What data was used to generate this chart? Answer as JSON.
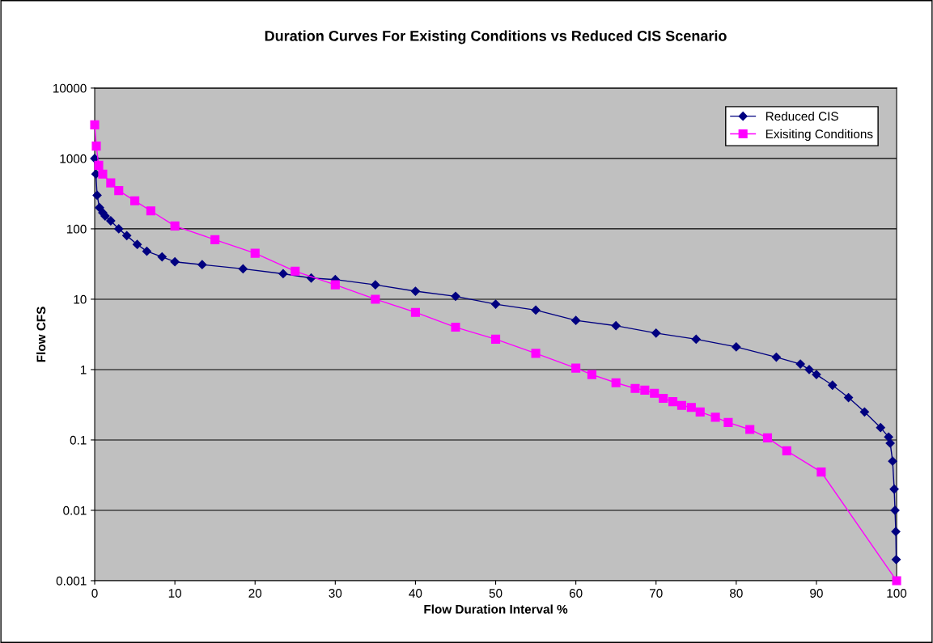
{
  "chart_data": {
    "type": "line",
    "title": "Duration Curves For Existing Conditions vs Reduced CIS Scenario",
    "xlabel": "Flow Duration Interval %",
    "ylabel": "Flow CFS",
    "log": "y",
    "grid": "y",
    "legend": "top right",
    "xlim": [
      0,
      100
    ],
    "xticks": [
      0,
      10,
      20,
      30,
      40,
      50,
      60,
      70,
      80,
      90,
      100
    ],
    "ylim": [
      0.001,
      10000
    ],
    "yticks": [
      0.001,
      0.01,
      0.1,
      1,
      10,
      100,
      1000,
      10000
    ],
    "series": [
      {
        "name": "Reduced CIS",
        "color": "#000080",
        "marker": "diamond",
        "x": [
          0,
          0.15,
          0.3,
          0.6,
          1,
          1.3,
          2,
          3,
          4,
          5.3,
          6.5,
          8.4,
          10,
          13.4,
          18.5,
          23.5,
          27,
          30,
          35,
          40,
          45,
          50,
          55,
          60,
          65,
          70,
          75,
          80,
          85,
          88,
          89.1,
          90,
          92,
          94,
          96,
          98,
          99,
          99.2,
          99.5,
          99.7,
          99.8,
          99.9,
          99.95
        ],
        "values": [
          1000,
          600,
          300,
          200,
          170,
          152,
          130,
          100,
          80,
          60,
          48,
          40,
          34,
          31,
          27,
          23,
          20,
          19,
          16,
          13,
          11,
          8.5,
          7,
          5,
          4.2,
          3.3,
          2.7,
          2.1,
          1.5,
          1.2,
          1,
          0.85,
          0.6,
          0.4,
          0.25,
          0.15,
          0.11,
          0.09,
          0.05,
          0.02,
          0.01,
          0.005,
          0.002
        ]
      },
      {
        "name": "Exisiting Conditions",
        "color": "#ff00ff",
        "marker": "square",
        "x": [
          0,
          0.2,
          0.5,
          1,
          2,
          3,
          5,
          7,
          10,
          15,
          20,
          25,
          30,
          35,
          40,
          45,
          50,
          55,
          60,
          62,
          65,
          67.4,
          68.6,
          69.8,
          70.9,
          72.1,
          73.2,
          74.4,
          75.5,
          77.4,
          79.0,
          81.7,
          83.9,
          86.3,
          90.6,
          100
        ],
        "values": [
          3000,
          1500,
          800,
          600,
          450,
          350,
          250,
          180,
          110,
          70,
          45,
          25,
          16,
          10,
          6.5,
          4,
          2.7,
          1.7,
          1.05,
          0.85,
          0.65,
          0.54,
          0.51,
          0.46,
          0.39,
          0.35,
          0.31,
          0.29,
          0.25,
          0.21,
          0.177,
          0.141,
          0.107,
          0.07,
          0.035,
          0.001
        ]
      }
    ]
  }
}
